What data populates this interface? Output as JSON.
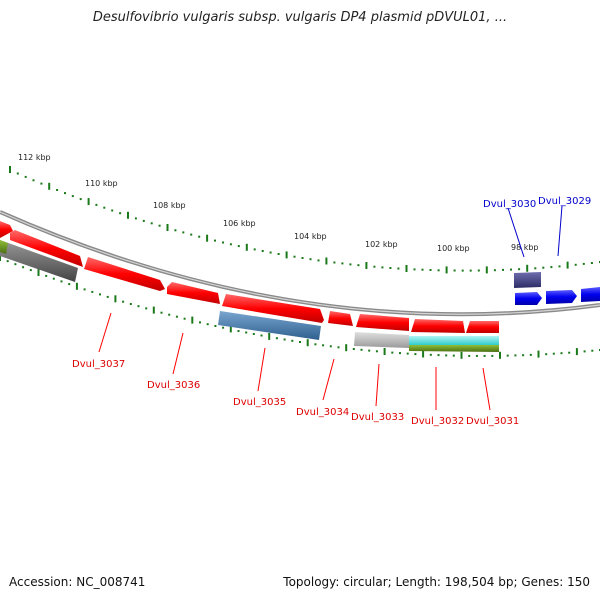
{
  "title": "Desulfovibrio vulgaris subsp. vulgaris DP4 plasmid pDVUL01, ...",
  "footer": {
    "accession": "Accession: NC_008741",
    "summary": "Topology: circular; Length: 198,504 bp; Genes: 150"
  },
  "colors": {
    "forward": "#ff0000",
    "reverse": "#0000ee",
    "ruler": "#1a7a1a",
    "backbone": "#8a8a8a"
  },
  "ruler_labels": [
    "112 kbp",
    "110 kbp",
    "108 kbp",
    "106 kbp",
    "104 kbp",
    "102 kbp",
    "100 kbp",
    "98 kbp"
  ],
  "genes_red": [
    "Dvul_3037",
    "Dvul_3036",
    "Dvul_3035",
    "Dvul_3034",
    "Dvul_3033",
    "Dvul_3032",
    "Dvul_3031"
  ],
  "genes_blue": [
    "Dvul_3030",
    "Dvul_3029"
  ]
}
